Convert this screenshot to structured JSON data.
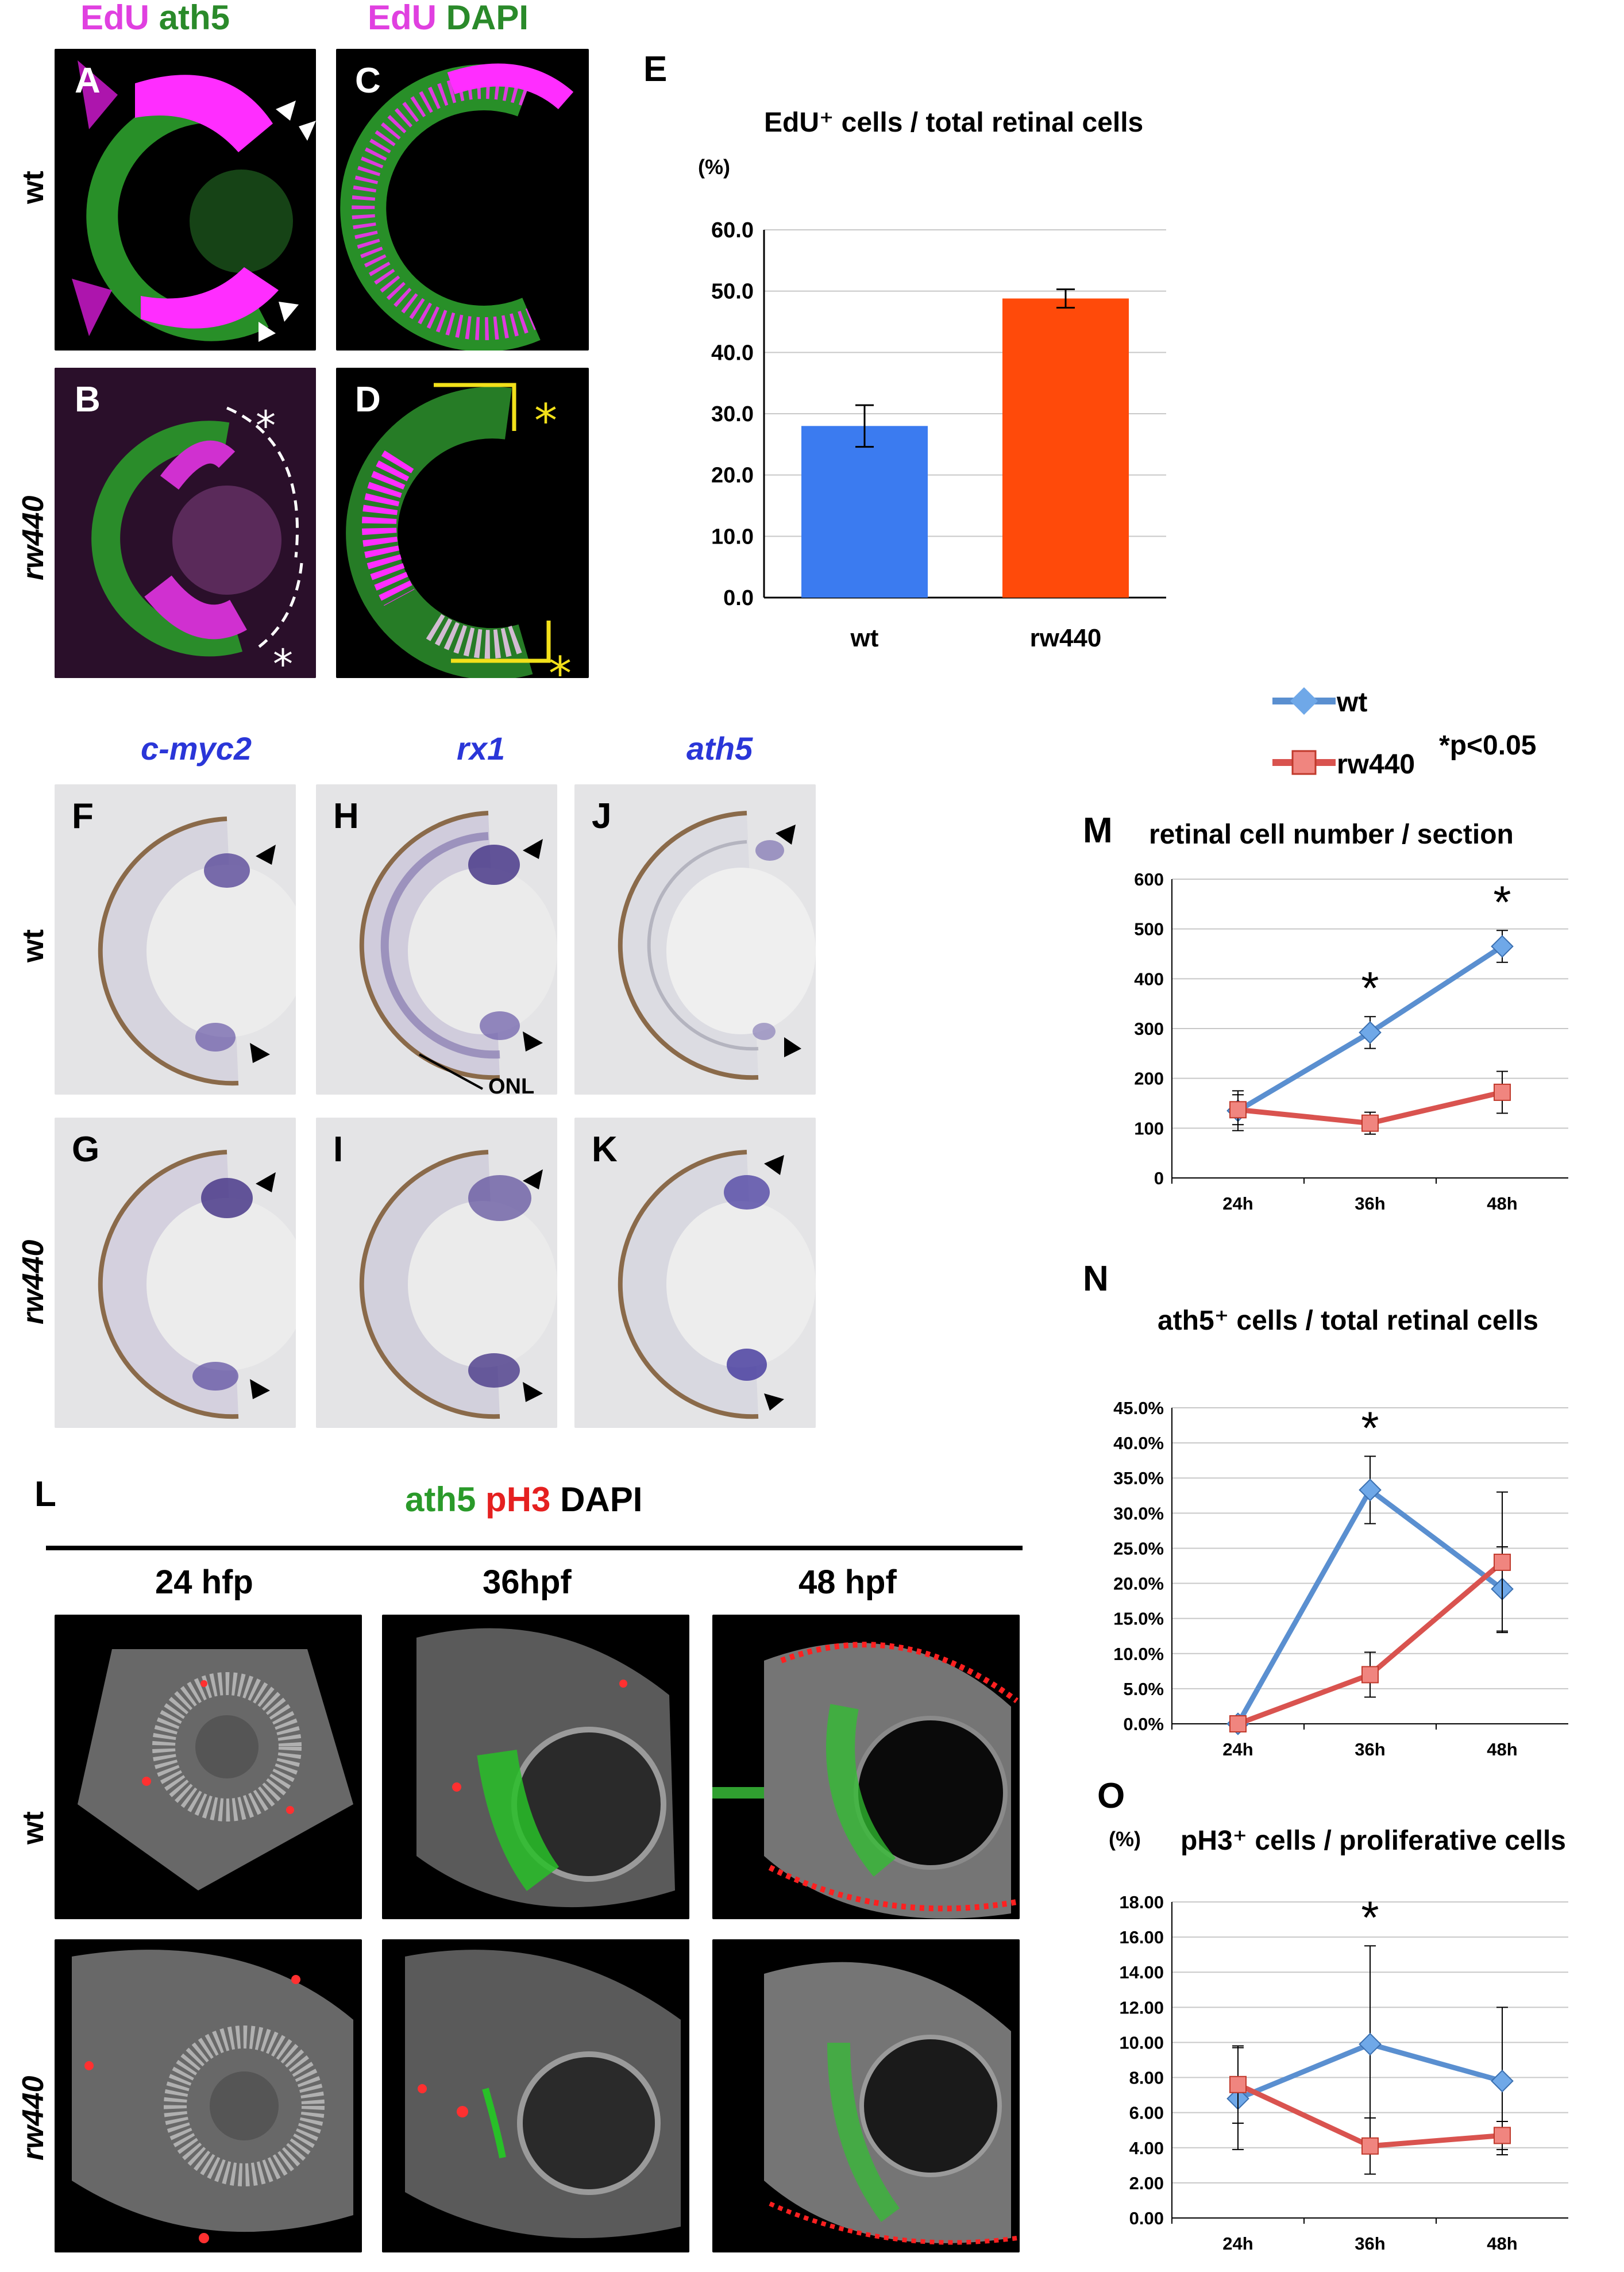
{
  "top_headers": {
    "ab_edu": "EdU",
    "ab_ath5": "ath5",
    "cd_edu": "EdU",
    "cd_dapi": "DAPI",
    "colors": {
      "magenta": "#e040e0",
      "green": "#2a8a2a",
      "blue": "#2a36d8",
      "red": "#e52020"
    }
  },
  "panel_letters": [
    "A",
    "B",
    "C",
    "D",
    "E",
    "F",
    "G",
    "H",
    "I",
    "J",
    "K",
    "L",
    "M",
    "N",
    "O"
  ],
  "row_labels": {
    "wt": "wt",
    "rw440": "rw440"
  },
  "genes": {
    "g1": "c-myc2",
    "g2": "rx1",
    "g3": "ath5"
  },
  "onl_label": "ONL",
  "L_header": {
    "ath5": "ath5",
    "pH3": "pH3",
    "DAPI": "DAPI"
  },
  "L_timepoints": [
    "24 hfp",
    "36hpf",
    "48 hpf"
  ],
  "legend": {
    "wt": "wt",
    "rw440": "rw440",
    "sig": "p<0.05",
    "star": "*"
  },
  "chart_data": [
    {
      "panel": "E",
      "type": "bar",
      "title": "EdU⁺ cells / total retinal cells",
      "ylabel": "(%)",
      "categories": [
        "wt",
        "rw440"
      ],
      "values": [
        28.0,
        48.8
      ],
      "errors": [
        3.4,
        1.5
      ],
      "ylim": [
        0,
        60
      ],
      "yticks": [
        "0.0",
        "10.0",
        "20.0",
        "30.0",
        "40.0",
        "50.0",
        "60.0"
      ],
      "colors": [
        "#3b7bf0",
        "#ff4a0a"
      ],
      "grid": true
    },
    {
      "panel": "M",
      "type": "line",
      "title": "retinal cell number / section",
      "x": [
        "24h",
        "36h",
        "48h"
      ],
      "ylim": [
        0,
        600
      ],
      "yticks": [
        "0",
        "100",
        "200",
        "300",
        "400",
        "500",
        "600"
      ],
      "series": [
        {
          "name": "wt",
          "values": [
            135,
            292,
            465
          ],
          "errors": [
            40,
            32,
            32
          ],
          "color": "#5a8fd0"
        },
        {
          "name": "rw440",
          "values": [
            137,
            110,
            172
          ],
          "errors": [
            30,
            22,
            42
          ],
          "color": "#d9534f"
        }
      ],
      "significant": [
        "36h",
        "48h"
      ]
    },
    {
      "panel": "N",
      "type": "line",
      "title": "ath5⁺ cells / total retinal cells",
      "x": [
        "24h",
        "36h",
        "48h"
      ],
      "ylim": [
        0,
        45
      ],
      "yticks": [
        "0.0%",
        "5.0%",
        "10.0%",
        "15.0%",
        "20.0%",
        "25.0%",
        "30.0%",
        "35.0%",
        "40.0%",
        "45.0%"
      ],
      "series": [
        {
          "name": "wt",
          "values": [
            0,
            33.3,
            19.2
          ],
          "errors": [
            0,
            4.8,
            6.0
          ],
          "color": "#5a8fd0"
        },
        {
          "name": "rw440",
          "values": [
            0,
            7.0,
            23.0
          ],
          "errors": [
            0,
            3.2,
            10.0
          ],
          "color": "#d9534f"
        }
      ],
      "significant": [
        "36h"
      ]
    },
    {
      "panel": "O",
      "type": "line",
      "title": "pH3⁺ cells / proliferative cells",
      "ylabel": "(%)",
      "x": [
        "24h",
        "36h",
        "48h"
      ],
      "ylim": [
        0,
        18
      ],
      "yticks": [
        "0.00",
        "2.00",
        "4.00",
        "6.00",
        "8.00",
        "10.00",
        "12.00",
        "14.00",
        "16.00",
        "18.00"
      ],
      "series": [
        {
          "name": "wt",
          "values": [
            6.8,
            9.9,
            7.8
          ],
          "errors": [
            2.9,
            5.6,
            4.2
          ],
          "color": "#5a8fd0"
        },
        {
          "name": "rw440",
          "values": [
            7.6,
            4.1,
            4.7
          ],
          "errors": [
            2.2,
            1.6,
            0.8
          ],
          "color": "#d9534f"
        }
      ],
      "significant": [
        "36h"
      ]
    }
  ]
}
